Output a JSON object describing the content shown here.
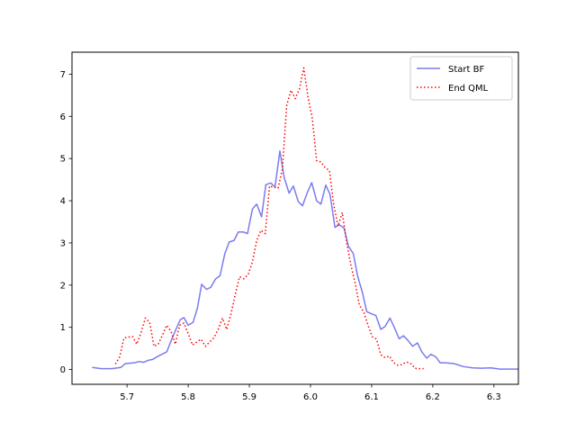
{
  "chart_data": {
    "type": "line",
    "title": "",
    "xlabel": "",
    "ylabel": "",
    "xlim": [
      5.61,
      6.34
    ],
    "ylim": [
      -0.35,
      7.52
    ],
    "xticks": [
      5.7,
      5.8,
      5.9,
      6.0,
      6.1,
      6.2,
      6.3
    ],
    "xtick_labels": [
      "5.7",
      "5.8",
      "5.9",
      "6.0",
      "6.1",
      "6.2",
      "6.3"
    ],
    "yticks": [
      0,
      1,
      2,
      3,
      4,
      5,
      6,
      7
    ],
    "ytick_labels": [
      "0",
      "1",
      "2",
      "3",
      "4",
      "5",
      "6",
      "7"
    ],
    "grid": false,
    "legend_position": "top-right",
    "series": [
      {
        "name": "Start BF",
        "color": "#7b7bef",
        "style": "solid",
        "points": [
          [
            5.643,
            0.05
          ],
          [
            5.658,
            0.02
          ],
          [
            5.675,
            0.02
          ],
          [
            5.69,
            0.05
          ],
          [
            5.697,
            0.14
          ],
          [
            5.712,
            0.16
          ],
          [
            5.72,
            0.19
          ],
          [
            5.727,
            0.17
          ],
          [
            5.735,
            0.22
          ],
          [
            5.742,
            0.24
          ],
          [
            5.75,
            0.31
          ],
          [
            5.757,
            0.36
          ],
          [
            5.765,
            0.42
          ],
          [
            5.772,
            0.68
          ],
          [
            5.78,
            0.95
          ],
          [
            5.787,
            1.18
          ],
          [
            5.793,
            1.23
          ],
          [
            5.8,
            1.05
          ],
          [
            5.808,
            1.12
          ],
          [
            5.815,
            1.45
          ],
          [
            5.822,
            2.02
          ],
          [
            5.83,
            1.9
          ],
          [
            5.837,
            1.95
          ],
          [
            5.845,
            2.15
          ],
          [
            5.852,
            2.22
          ],
          [
            5.86,
            2.75
          ],
          [
            5.867,
            3.02
          ],
          [
            5.875,
            3.06
          ],
          [
            5.882,
            3.26
          ],
          [
            5.89,
            3.26
          ],
          [
            5.897,
            3.22
          ],
          [
            5.905,
            3.8
          ],
          [
            5.912,
            3.92
          ],
          [
            5.92,
            3.62
          ],
          [
            5.927,
            4.38
          ],
          [
            5.935,
            4.42
          ],
          [
            5.942,
            4.33
          ],
          [
            5.95,
            5.18
          ],
          [
            5.957,
            4.55
          ],
          [
            5.965,
            4.18
          ],
          [
            5.972,
            4.35
          ],
          [
            5.98,
            3.98
          ],
          [
            5.987,
            3.88
          ],
          [
            5.995,
            4.2
          ],
          [
            6.002,
            4.43
          ],
          [
            6.01,
            4.0
          ],
          [
            6.017,
            3.92
          ],
          [
            6.025,
            4.37
          ],
          [
            6.032,
            4.15
          ],
          [
            6.04,
            3.37
          ],
          [
            6.047,
            3.43
          ],
          [
            6.055,
            3.35
          ],
          [
            6.062,
            2.92
          ],
          [
            6.07,
            2.75
          ],
          [
            6.077,
            2.22
          ],
          [
            6.085,
            1.82
          ],
          [
            6.092,
            1.37
          ],
          [
            6.1,
            1.32
          ],
          [
            6.107,
            1.28
          ],
          [
            6.115,
            0.95
          ],
          [
            6.122,
            1.02
          ],
          [
            6.13,
            1.22
          ],
          [
            6.137,
            1.0
          ],
          [
            6.145,
            0.73
          ],
          [
            6.152,
            0.8
          ],
          [
            6.16,
            0.68
          ],
          [
            6.167,
            0.55
          ],
          [
            6.175,
            0.63
          ],
          [
            6.182,
            0.42
          ],
          [
            6.19,
            0.27
          ],
          [
            6.197,
            0.36
          ],
          [
            6.205,
            0.3
          ],
          [
            6.212,
            0.16
          ],
          [
            6.22,
            0.16
          ],
          [
            6.235,
            0.14
          ],
          [
            6.25,
            0.07
          ],
          [
            6.265,
            0.04
          ],
          [
            6.28,
            0.03
          ],
          [
            6.295,
            0.04
          ],
          [
            6.31,
            0.01
          ],
          [
            6.33,
            0.01
          ],
          [
            6.35,
            0.01
          ],
          [
            6.37,
            0.01
          ],
          [
            6.39,
            0.01
          ]
        ]
      },
      {
        "name": "End QML",
        "color": "#ff0000",
        "style": "dotted",
        "points": [
          [
            5.681,
            0.13
          ],
          [
            5.688,
            0.3
          ],
          [
            5.695,
            0.75
          ],
          [
            5.702,
            0.77
          ],
          [
            5.709,
            0.78
          ],
          [
            5.716,
            0.6
          ],
          [
            5.723,
            0.88
          ],
          [
            5.73,
            1.22
          ],
          [
            5.737,
            1.12
          ],
          [
            5.744,
            0.55
          ],
          [
            5.751,
            0.6
          ],
          [
            5.758,
            0.82
          ],
          [
            5.765,
            1.05
          ],
          [
            5.772,
            0.9
          ],
          [
            5.779,
            0.6
          ],
          [
            5.786,
            1.05
          ],
          [
            5.793,
            1.1
          ],
          [
            5.8,
            0.85
          ],
          [
            5.807,
            0.58
          ],
          [
            5.814,
            0.65
          ],
          [
            5.821,
            0.72
          ],
          [
            5.828,
            0.55
          ],
          [
            5.835,
            0.65
          ],
          [
            5.842,
            0.75
          ],
          [
            5.849,
            0.95
          ],
          [
            5.856,
            1.22
          ],
          [
            5.863,
            0.95
          ],
          [
            5.87,
            1.32
          ],
          [
            5.877,
            1.78
          ],
          [
            5.884,
            2.2
          ],
          [
            5.891,
            2.15
          ],
          [
            5.898,
            2.25
          ],
          [
            5.905,
            2.55
          ],
          [
            5.912,
            3.05
          ],
          [
            5.919,
            3.3
          ],
          [
            5.926,
            3.22
          ],
          [
            5.933,
            4.35
          ],
          [
            5.94,
            4.32
          ],
          [
            5.947,
            4.3
          ],
          [
            5.954,
            4.75
          ],
          [
            5.961,
            6.25
          ],
          [
            5.968,
            6.62
          ],
          [
            5.975,
            6.42
          ],
          [
            5.982,
            6.65
          ],
          [
            5.989,
            7.15
          ],
          [
            5.996,
            6.45
          ],
          [
            6.003,
            5.95
          ],
          [
            6.01,
            4.95
          ],
          [
            6.017,
            4.92
          ],
          [
            6.024,
            4.78
          ],
          [
            6.031,
            4.72
          ],
          [
            6.038,
            3.9
          ],
          [
            6.045,
            3.4
          ],
          [
            6.052,
            3.72
          ],
          [
            6.059,
            3.02
          ],
          [
            6.066,
            2.48
          ],
          [
            6.073,
            2.05
          ],
          [
            6.08,
            1.52
          ],
          [
            6.087,
            1.37
          ],
          [
            6.094,
            1.05
          ],
          [
            6.101,
            0.78
          ],
          [
            6.108,
            0.72
          ],
          [
            6.115,
            0.35
          ],
          [
            6.122,
            0.28
          ],
          [
            6.129,
            0.32
          ],
          [
            6.136,
            0.16
          ],
          [
            6.143,
            0.1
          ],
          [
            6.15,
            0.12
          ],
          [
            6.157,
            0.18
          ],
          [
            6.164,
            0.14
          ],
          [
            6.171,
            0.03
          ],
          [
            6.178,
            0.02
          ],
          [
            6.185,
            0.02
          ]
        ]
      }
    ]
  }
}
